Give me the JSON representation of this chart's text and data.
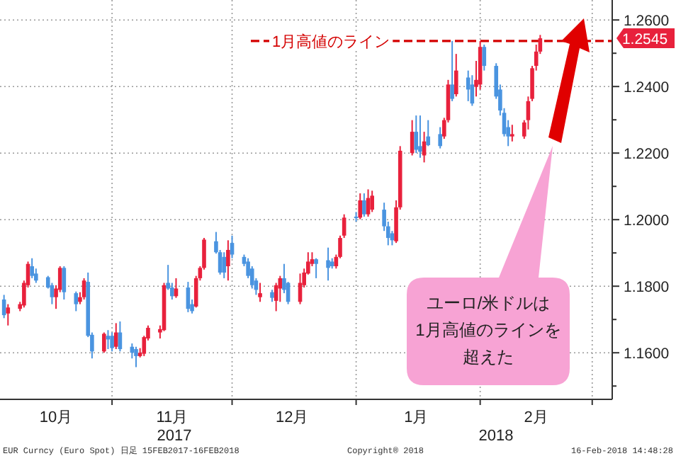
{
  "chart_data": {
    "type": "candlestick",
    "x": [
      "2017-10-05",
      "2017-10-06",
      "2017-10-09",
      "2017-10-10",
      "2017-10-11",
      "2017-10-12",
      "2017-10-13",
      "2017-10-16",
      "2017-10-17",
      "2017-10-18",
      "2017-10-19",
      "2017-10-20",
      "2017-10-23",
      "2017-10-24",
      "2017-10-25",
      "2017-10-26",
      "2017-10-27",
      "2017-10-30",
      "2017-10-31",
      "2017-11-01",
      "2017-11-02",
      "2017-11-03",
      "2017-11-06",
      "2017-11-07",
      "2017-11-08",
      "2017-11-09",
      "2017-11-10",
      "2017-11-13",
      "2017-11-14",
      "2017-11-15",
      "2017-11-16",
      "2017-11-17",
      "2017-11-20",
      "2017-11-21",
      "2017-11-22",
      "2017-11-23",
      "2017-11-24",
      "2017-11-27",
      "2017-11-28",
      "2017-11-29",
      "2017-11-30",
      "2017-12-01",
      "2017-12-04",
      "2017-12-05",
      "2017-12-06",
      "2017-12-07",
      "2017-12-08",
      "2017-12-11",
      "2017-12-12",
      "2017-12-13",
      "2017-12-14",
      "2017-12-15",
      "2017-12-18",
      "2017-12-19",
      "2017-12-20",
      "2017-12-21",
      "2017-12-22",
      "2017-12-25",
      "2017-12-26",
      "2017-12-27",
      "2017-12-28",
      "2017-12-29",
      "2018-01-01",
      "2018-01-02",
      "2018-01-03",
      "2018-01-04",
      "2018-01-05",
      "2018-01-08",
      "2018-01-09",
      "2018-01-10",
      "2018-01-11",
      "2018-01-12",
      "2018-01-15",
      "2018-01-16",
      "2018-01-17",
      "2018-01-18",
      "2018-01-19",
      "2018-01-22",
      "2018-01-23",
      "2018-01-24",
      "2018-01-25",
      "2018-01-26",
      "2018-01-29",
      "2018-01-30",
      "2018-01-31",
      "2018-02-01",
      "2018-02-02",
      "2018-02-05",
      "2018-02-06",
      "2018-02-07",
      "2018-02-08",
      "2018-02-09",
      "2018-02-12",
      "2018-02-13",
      "2018-02-14",
      "2018-02-15",
      "2018-02-16"
    ],
    "ohlc": [
      [
        1.176,
        1.1774,
        1.1704,
        1.1713
      ],
      [
        1.1718,
        1.1746,
        1.1682,
        1.1736
      ],
      [
        1.1732,
        1.1753,
        1.1725,
        1.1746
      ],
      [
        1.1742,
        1.1817,
        1.1736,
        1.181
      ],
      [
        1.1803,
        1.1874,
        1.1796,
        1.1867
      ],
      [
        1.186,
        1.1884,
        1.1824,
        1.1831
      ],
      [
        1.1838,
        1.1853,
        1.181,
        1.1817
      ],
      [
        1.1827,
        1.1831,
        1.1793,
        1.1796
      ],
      [
        1.1803,
        1.181,
        1.1746,
        1.1767
      ],
      [
        1.1767,
        1.1803,
        1.1732,
        1.1793
      ],
      [
        1.1789,
        1.186,
        1.1782,
        1.1855
      ],
      [
        1.1855,
        1.186,
        1.176,
        1.1782
      ],
      [
        1.1779,
        1.1784,
        1.1725,
        1.1746
      ],
      [
        1.1753,
        1.1782,
        1.1746,
        1.1767
      ],
      [
        1.1767,
        1.1824,
        1.176,
        1.1817
      ],
      [
        1.1813,
        1.1841,
        1.1647,
        1.1651
      ],
      [
        1.1654,
        1.1661,
        1.1583,
        1.1604
      ],
      [
        1.1604,
        1.1661,
        1.16,
        1.1657
      ],
      [
        1.1651,
        1.1668,
        1.1611,
        1.164
      ],
      [
        1.1651,
        1.1661,
        1.1604,
        1.1614
      ],
      [
        1.1618,
        1.1689,
        1.1611,
        1.1661
      ],
      [
        1.1661,
        1.1694,
        1.1604,
        1.1611
      ],
      [
        1.1618,
        1.1628,
        1.1583,
        1.16
      ],
      [
        1.1611,
        1.1618,
        1.1557,
        1.159
      ],
      [
        1.159,
        1.1614,
        1.1586,
        1.16
      ],
      [
        1.1597,
        1.1651,
        1.159,
        1.1647
      ],
      [
        1.1643,
        1.1682,
        1.1637,
        1.1675
      ],
      [
        1.1661,
        1.1682,
        1.1643,
        1.1671
      ],
      [
        1.1668,
        1.181,
        1.1665,
        1.1803
      ],
      [
        1.181,
        1.1864,
        1.1789,
        1.1793
      ],
      [
        1.1796,
        1.181,
        1.176,
        1.177
      ],
      [
        1.177,
        1.1824,
        1.1765,
        1.1793
      ],
      [
        1.1796,
        1.1813,
        1.1722,
        1.1732
      ],
      [
        1.1746,
        1.176,
        1.1718,
        1.1725
      ],
      [
        1.1739,
        1.1831,
        1.1736,
        1.1824
      ],
      [
        1.1824,
        1.186,
        1.1817,
        1.1855
      ],
      [
        1.1855,
        1.1945,
        1.185,
        1.194
      ],
      [
        1.1935,
        1.1963,
        1.1898,
        1.1902
      ],
      [
        1.1902,
        1.1909,
        1.1835,
        1.1841
      ],
      [
        1.1888,
        1.1902,
        1.1824,
        1.1841
      ],
      [
        1.186,
        1.1938,
        1.1817,
        1.1909
      ],
      [
        1.193,
        1.1952,
        1.1884,
        1.1895
      ],
      [
        1.1888,
        1.1895,
        1.186,
        1.1867
      ],
      [
        1.1874,
        1.1884,
        1.1824,
        1.1831
      ],
      [
        1.1853,
        1.186,
        1.1793,
        1.1803
      ],
      [
        1.1817,
        1.1824,
        1.1774,
        1.1789
      ],
      [
        1.1767,
        1.181,
        1.1753,
        1.1779
      ],
      [
        1.1782,
        1.1789,
        1.1753,
        1.1765
      ],
      [
        1.1756,
        1.181,
        1.1725,
        1.1803
      ],
      [
        1.1793,
        1.1831,
        1.1753,
        1.1824
      ],
      [
        1.1824,
        1.1867,
        1.1779,
        1.1789
      ],
      [
        1.181,
        1.1813,
        1.1746,
        1.1753
      ],
      [
        1.1753,
        1.1838,
        1.1746,
        1.181
      ],
      [
        1.1803,
        1.1853,
        1.1796,
        1.1841
      ],
      [
        1.1838,
        1.1902,
        1.1835,
        1.1874
      ],
      [
        1.1867,
        1.1902,
        1.186,
        1.1881
      ],
      [
        1.1881,
        1.1884,
        1.1824,
        1.1867
      ],
      [
        1.1878,
        1.1916,
        1.1817,
        1.1855
      ],
      [
        1.1874,
        1.1884,
        1.1853,
        1.186
      ],
      [
        1.186,
        1.1895,
        1.1853,
        1.1888
      ],
      [
        1.1888,
        1.1952,
        1.1884,
        1.1945
      ],
      [
        1.1952,
        1.2016,
        1.1945,
        1.2006
      ],
      [
        1.2009,
        1.2023,
        1.1994,
        1.2006
      ],
      [
        1.2006,
        1.2079,
        1.2001,
        1.2058
      ],
      [
        1.2058,
        1.2079,
        1.2009,
        1.2016
      ],
      [
        1.2016,
        1.2091,
        1.2009,
        1.2065
      ],
      [
        1.203,
        1.2087,
        1.2023,
        1.2072
      ],
      [
        1.203,
        1.2051,
        1.1966,
        1.198
      ],
      [
        1.198,
        1.1994,
        1.1923,
        1.1945
      ],
      [
        1.1959,
        1.1966,
        1.1923,
        1.1938
      ],
      [
        1.1935,
        1.2058,
        1.193,
        1.2037
      ],
      [
        1.2037,
        1.2221,
        1.203,
        1.2207
      ],
      [
        1.22,
        1.2299,
        1.2193,
        1.2264
      ],
      [
        1.2264,
        1.2313,
        1.22,
        1.221
      ],
      [
        1.2221,
        1.2313,
        1.2186,
        1.2204
      ],
      [
        1.2193,
        1.2264,
        1.2172,
        1.2235
      ],
      [
        1.225,
        1.2299,
        1.2221,
        1.2224
      ],
      [
        1.2257,
        1.2278,
        1.2214,
        1.2221
      ],
      [
        1.225,
        1.2306,
        1.2243,
        1.2299
      ],
      [
        1.2299,
        1.242,
        1.2292,
        1.2406
      ],
      [
        1.2406,
        1.2537,
        1.2356,
        1.2363
      ],
      [
        1.2377,
        1.2498,
        1.237,
        1.2448
      ],
      [
        1.2427,
        1.2448,
        1.2356,
        1.2391
      ],
      [
        1.2406,
        1.2434,
        1.2342,
        1.2349
      ],
      [
        1.2399,
        1.2477,
        1.237,
        1.242
      ],
      [
        1.2406,
        1.2537,
        1.2391,
        1.2519
      ],
      [
        1.2519,
        1.2526,
        1.2448,
        1.2462
      ],
      [
        1.2462,
        1.247,
        1.2363,
        1.237
      ],
      [
        1.2391,
        1.2406,
        1.2313,
        1.2328
      ],
      [
        1.2321,
        1.2335,
        1.225,
        1.2257
      ],
      [
        1.2278,
        1.2299,
        1.2221,
        1.225
      ],
      [
        1.225,
        1.2285,
        1.2235,
        1.2257
      ],
      [
        1.225,
        1.2299,
        1.2243,
        1.2292
      ],
      [
        1.2299,
        1.237,
        1.2271,
        1.2356
      ],
      [
        1.2363,
        1.2462,
        1.2356,
        1.2455
      ],
      [
        1.2462,
        1.2526,
        1.2448,
        1.2505
      ],
      [
        1.2505,
        1.2555,
        1.2498,
        1.2545
      ]
    ],
    "colors": [
      "#4a94e0",
      "#e8213c",
      "#e8213c",
      "#e8213c",
      "#e8213c",
      "#4a94e0",
      "#4a94e0",
      "#4a94e0",
      "#4a94e0",
      "#e8213c",
      "#e8213c",
      "#4a94e0",
      "#4a94e0",
      "#e8213c",
      "#e8213c",
      "#4a94e0",
      "#4a94e0",
      "#e8213c",
      "#4a94e0",
      "#4a94e0",
      "#e8213c",
      "#4a94e0",
      "#4a94e0",
      "#4a94e0",
      "#e8213c",
      "#e8213c",
      "#e8213c",
      "#e8213c",
      "#e8213c",
      "#4a94e0",
      "#4a94e0",
      "#e8213c",
      "#4a94e0",
      "#4a94e0",
      "#e8213c",
      "#e8213c",
      "#e8213c",
      "#4a94e0",
      "#4a94e0",
      "#4a94e0",
      "#e8213c",
      "#4a94e0",
      "#4a94e0",
      "#4a94e0",
      "#4a94e0",
      "#4a94e0",
      "#e8213c",
      "#4a94e0",
      "#e8213c",
      "#e8213c",
      "#4a94e0",
      "#4a94e0",
      "#e8213c",
      "#e8213c",
      "#e8213c",
      "#e8213c",
      "#4a94e0",
      "#4a94e0",
      "#4a94e0",
      "#e8213c",
      "#e8213c",
      "#e8213c",
      "#4a94e0",
      "#e8213c",
      "#4a94e0",
      "#e8213c",
      "#e8213c",
      "#4a94e0",
      "#4a94e0",
      "#4a94e0",
      "#e8213c",
      "#e8213c",
      "#e8213c",
      "#4a94e0",
      "#4a94e0",
      "#e8213c",
      "#4a94e0",
      "#4a94e0",
      "#e8213c",
      "#e8213c",
      "#4a94e0",
      "#e8213c",
      "#4a94e0",
      "#4a94e0",
      "#e8213c",
      "#e8213c",
      "#4a94e0",
      "#4a94e0",
      "#4a94e0",
      "#4a94e0",
      "#4a94e0",
      "#e8213c",
      "#e8213c",
      "#e8213c",
      "#e8213c",
      "#e8213c",
      "#e8213c"
    ],
    "xlim": [
      "2017-10-04",
      "2018-03-06"
    ],
    "xticks": [
      {
        "value": "2017-10-18",
        "label": "10月"
      },
      {
        "value": "2017-11-01",
        "label": null
      },
      {
        "value": "2017-11-16",
        "label": "11月"
      },
      {
        "value": "2017-12-01",
        "label": null
      },
      {
        "value": "2017-12-16",
        "label": "12月"
      },
      {
        "value": "2018-01-01",
        "label": null
      },
      {
        "value": "2018-01-16",
        "label": "1月"
      },
      {
        "value": "2018-02-01",
        "label": null
      },
      {
        "value": "2018-02-15",
        "label": "2月"
      },
      {
        "value": "2018-03-01",
        "label": null
      }
    ],
    "ylim": [
      1.146,
      1.266
    ],
    "yticks": [
      {
        "value": 1.15,
        "label": null
      },
      {
        "value": 1.16,
        "label": "1.1600"
      },
      {
        "value": 1.17,
        "label": null
      },
      {
        "value": 1.18,
        "label": "1.1800"
      },
      {
        "value": 1.19,
        "label": null
      },
      {
        "value": 1.2,
        "label": "1.2000"
      },
      {
        "value": 1.21,
        "label": null
      },
      {
        "value": 1.22,
        "label": "1.2200"
      },
      {
        "value": 1.23,
        "label": null
      },
      {
        "value": 1.24,
        "label": "1.2400"
      },
      {
        "value": 1.25,
        "label": null
      },
      {
        "value": 1.26,
        "label": "1.2600"
      }
    ],
    "grid": true,
    "ref_lines": [
      {
        "axis": "y",
        "value": 1.2537,
        "label": "1月高値のライン",
        "color": "#d40000",
        "line_style": "dashed"
      }
    ],
    "annotations": [
      "2017",
      "2018",
      "ユーロ/米ドルは",
      "1月高値のラインを",
      "超えた",
      "EUR Curncy (Euro Spot) 日足 15FEB2017-16FEB2018",
      "Copyright® 2018",
      "16-Feb-2018 14:48:28",
      "1.2545"
    ]
  }
}
